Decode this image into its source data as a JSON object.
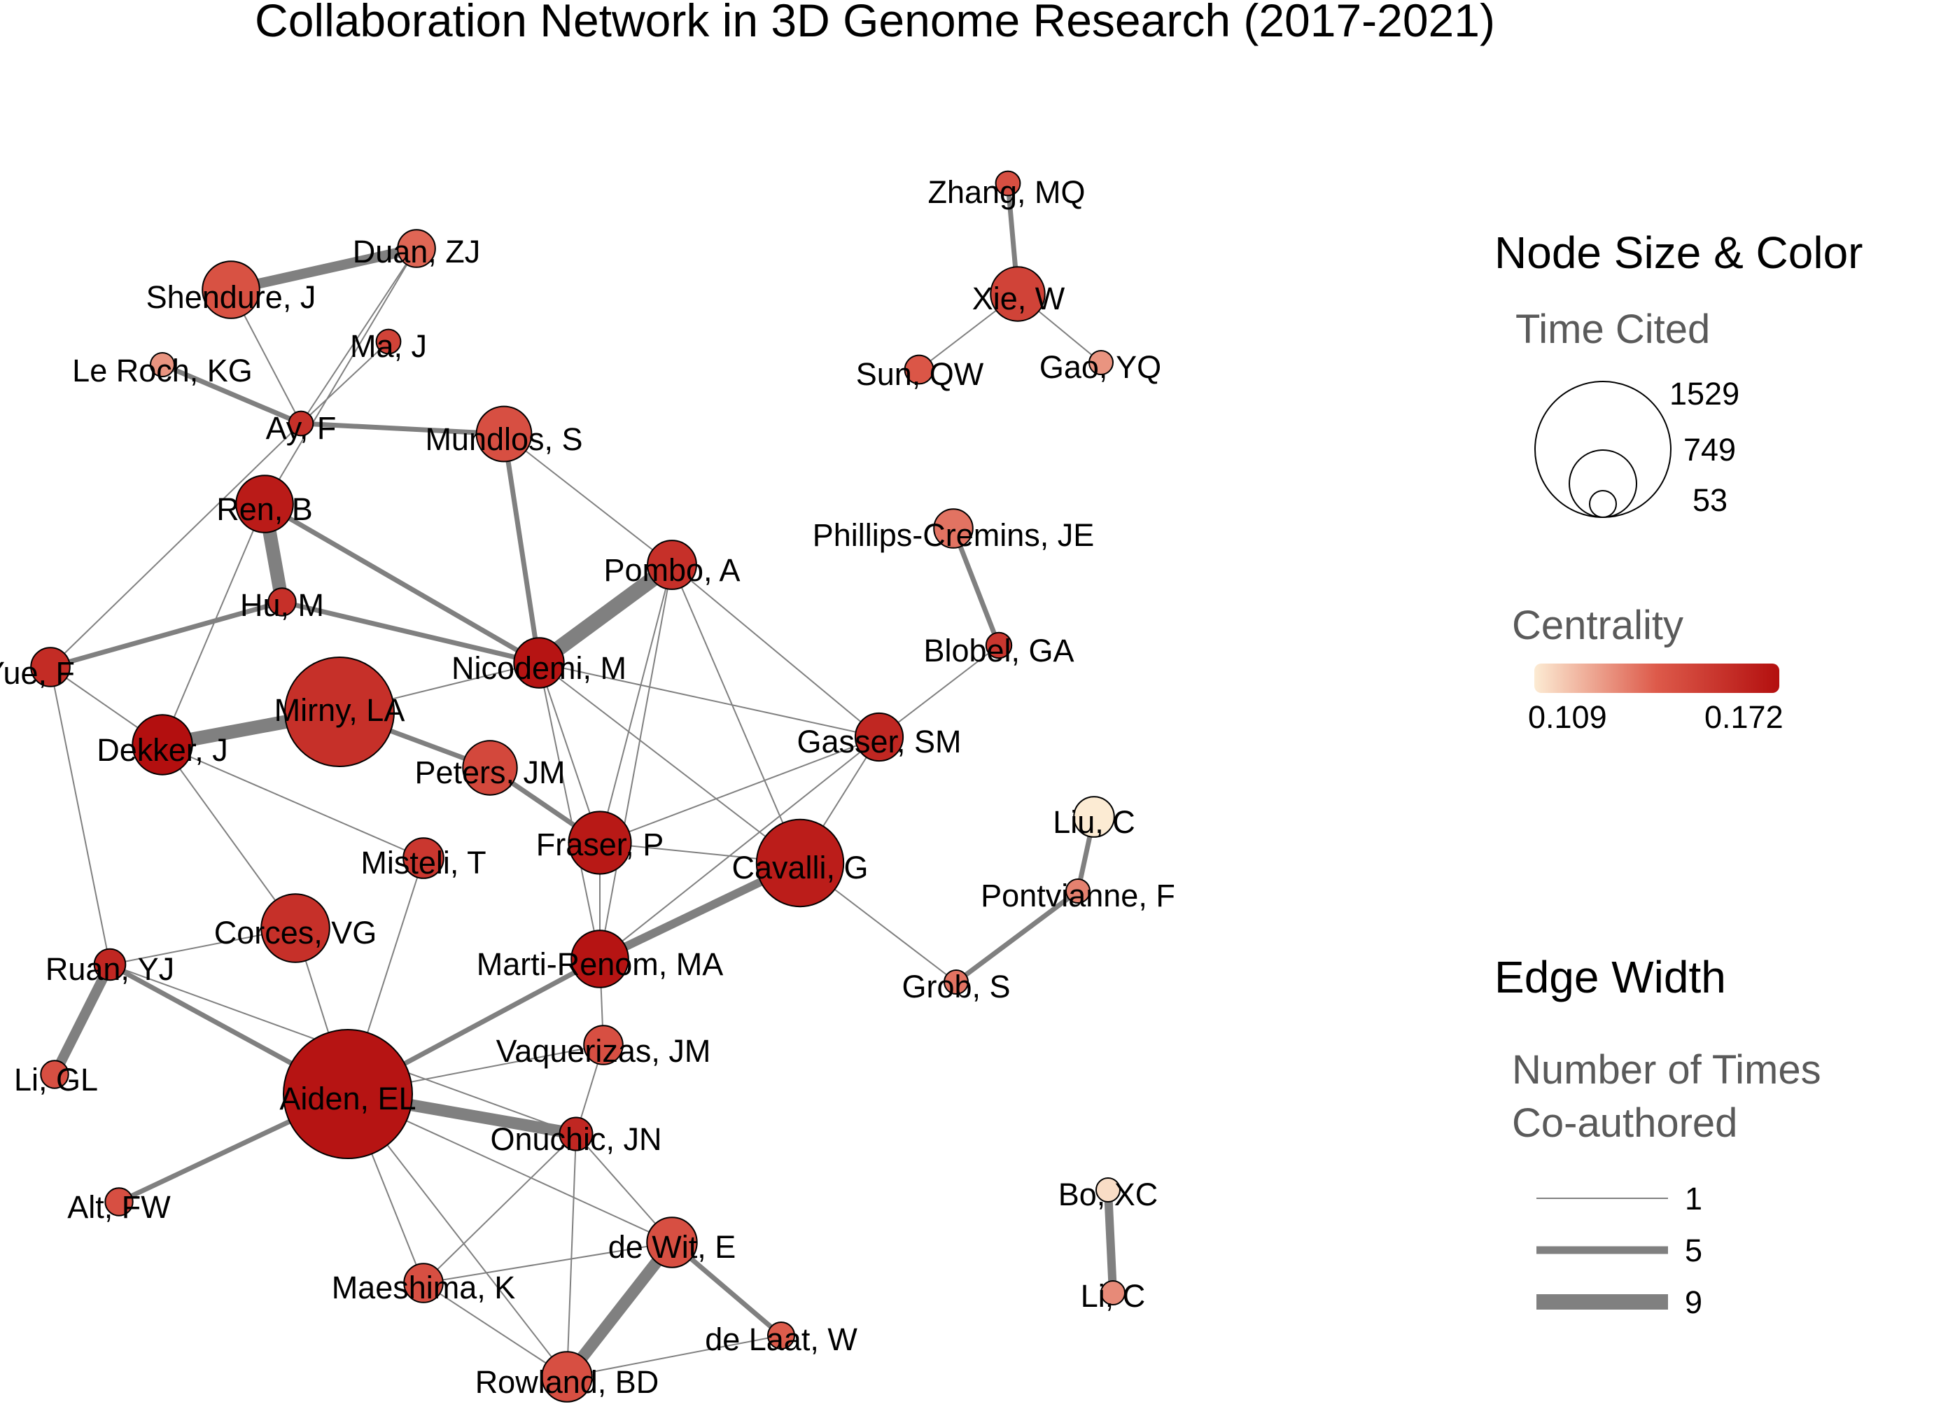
{
  "title": "Collaboration Network in 3D Genome Research (2017-2021)",
  "colors": {
    "low": "#fcebd3",
    "mid": "#dd5a4a",
    "high": "#b30f0f",
    "edge": "#808080"
  },
  "legend": {
    "node_heading": "Node Size & Color",
    "size_title": "Time Cited",
    "size_values": [
      "1529",
      "749",
      "53"
    ],
    "centrality_title": "Centrality",
    "centrality_min": "0.109",
    "centrality_max": "0.172",
    "edge_heading": "Edge Width",
    "edge_title_line1": "Number of Times",
    "edge_title_line2": "Co-authored",
    "edge_values": [
      "1",
      "5",
      "9"
    ]
  },
  "nodes": [
    {
      "id": "Zhang, MQ",
      "centrality": 0.145,
      "cited": 55
    },
    {
      "id": "Xie, W",
      "centrality": 0.15,
      "cited": 270
    },
    {
      "id": "Sun, QW",
      "centrality": 0.142,
      "cited": 75
    },
    {
      "id": "Gao, YQ",
      "centrality": 0.128,
      "cited": 45
    },
    {
      "id": "Shendure, J",
      "centrality": 0.144,
      "cited": 300
    },
    {
      "id": "Duan, ZJ",
      "centrality": 0.138,
      "cited": 130
    },
    {
      "id": "Ma, J",
      "centrality": 0.15,
      "cited": 55
    },
    {
      "id": "Le Roch, KG",
      "centrality": 0.128,
      "cited": 40
    },
    {
      "id": "Ay, F",
      "centrality": 0.158,
      "cited": 55
    },
    {
      "id": "Mundlos, S",
      "centrality": 0.145,
      "cited": 280
    },
    {
      "id": "Ren, B",
      "centrality": 0.167,
      "cited": 300
    },
    {
      "id": "Pombo, A",
      "centrality": 0.158,
      "cited": 220
    },
    {
      "id": "Phillips-Cremins, JE",
      "centrality": 0.135,
      "cited": 140
    },
    {
      "id": "Hu, M",
      "centrality": 0.158,
      "cited": 70
    },
    {
      "id": "Yue, F",
      "centrality": 0.16,
      "cited": 140
    },
    {
      "id": "Nicodemi, M",
      "centrality": 0.17,
      "cited": 230
    },
    {
      "id": "Blobel, GA",
      "centrality": 0.155,
      "cited": 60
    },
    {
      "id": "Mirny, LA",
      "centrality": 0.158,
      "cited": 1100
    },
    {
      "id": "Dekker, J",
      "centrality": 0.172,
      "cited": 330
    },
    {
      "id": "Gasser, SM",
      "centrality": 0.162,
      "cited": 210
    },
    {
      "id": "Peters, JM",
      "centrality": 0.148,
      "cited": 270
    },
    {
      "id": "Liu, C",
      "centrality": 0.109,
      "cited": 150
    },
    {
      "id": "Fraser, P",
      "centrality": 0.168,
      "cited": 360
    },
    {
      "id": "Cavalli, G",
      "centrality": 0.166,
      "cited": 700
    },
    {
      "id": "Misteli, T",
      "centrality": 0.155,
      "cited": 150
    },
    {
      "id": "Pontvianne, F",
      "centrality": 0.132,
      "cited": 40
    },
    {
      "id": "Corces, VG",
      "centrality": 0.158,
      "cited": 430
    },
    {
      "id": "Ruan, YJ",
      "centrality": 0.162,
      "cited": 90
    },
    {
      "id": "Marti-Renom, MA",
      "centrality": 0.17,
      "cited": 300
    },
    {
      "id": "Grob, S",
      "centrality": 0.135,
      "cited": 45
    },
    {
      "id": "Vaquerizas, JM",
      "centrality": 0.145,
      "cited": 140
    },
    {
      "id": "Li, GL",
      "centrality": 0.145,
      "cited": 70
    },
    {
      "id": "Aiden, EL",
      "centrality": 0.17,
      "cited": 1529
    },
    {
      "id": "Onuchic, JN",
      "centrality": 0.162,
      "cited": 100
    },
    {
      "id": "Bo, XC",
      "centrality": 0.112,
      "cited": 50
    },
    {
      "id": "Alt, FW",
      "centrality": 0.145,
      "cited": 70
    },
    {
      "id": "de Wit, E",
      "centrality": 0.145,
      "cited": 230
    },
    {
      "id": "Maeshima, K",
      "centrality": 0.145,
      "cited": 140
    },
    {
      "id": "Li, C",
      "centrality": 0.13,
      "cited": 50
    },
    {
      "id": "de Laat, W",
      "centrality": 0.14,
      "cited": 65
    },
    {
      "id": "Rowland, BD",
      "centrality": 0.145,
      "cited": 230
    }
  ],
  "edges": [
    {
      "source": "Zhang, MQ",
      "target": "Xie, W",
      "weight": 3
    },
    {
      "source": "Xie, W",
      "target": "Sun, QW",
      "weight": 1
    },
    {
      "source": "Xie, W",
      "target": "Gao, YQ",
      "weight": 1
    },
    {
      "source": "Shendure, J",
      "target": "Duan, ZJ",
      "weight": 6
    },
    {
      "source": "Shendure, J",
      "target": "Ay, F",
      "weight": 1
    },
    {
      "source": "Duan, ZJ",
      "target": "Ay, F",
      "weight": 1
    },
    {
      "source": "Duan, ZJ",
      "target": "Ren, B",
      "weight": 1
    },
    {
      "source": "Ma, J",
      "target": "Ay, F",
      "weight": 1
    },
    {
      "source": "Le Roch, KG",
      "target": "Ay, F",
      "weight": 3
    },
    {
      "source": "Ay, F",
      "target": "Mundlos, S",
      "weight": 3
    },
    {
      "source": "Ay, F",
      "target": "Yue, F",
      "weight": 1
    },
    {
      "source": "Ren, B",
      "target": "Hu, M",
      "weight": 8
    },
    {
      "source": "Ren, B",
      "target": "Nicodemi, M",
      "weight": 3
    },
    {
      "source": "Ren, B",
      "target": "Dekker, J",
      "weight": 1
    },
    {
      "source": "Mundlos, S",
      "target": "Nicodemi, M",
      "weight": 3
    },
    {
      "source": "Mundlos, S",
      "target": "Pombo, A",
      "weight": 1
    },
    {
      "source": "Hu, M",
      "target": "Yue, F",
      "weight": 3
    },
    {
      "source": "Hu, M",
      "target": "Nicodemi, M",
      "weight": 3
    },
    {
      "source": "Pombo, A",
      "target": "Nicodemi, M",
      "weight": 9
    },
    {
      "source": "Pombo, A",
      "target": "Fraser, P",
      "weight": 1
    },
    {
      "source": "Pombo, A",
      "target": "Marti-Renom, MA",
      "weight": 1
    },
    {
      "source": "Pombo, A",
      "target": "Cavalli, G",
      "weight": 1
    },
    {
      "source": "Pombo, A",
      "target": "Gasser, SM",
      "weight": 1
    },
    {
      "source": "Phillips-Cremins, JE",
      "target": "Blobel, GA",
      "weight": 3
    },
    {
      "source": "Blobel, GA",
      "target": "Gasser, SM",
      "weight": 1
    },
    {
      "source": "Yue, F",
      "target": "Dekker, J",
      "weight": 1
    },
    {
      "source": "Yue, F",
      "target": "Ruan, YJ",
      "weight": 1
    },
    {
      "source": "Nicodemi, M",
      "target": "Mirny, LA",
      "weight": 1
    },
    {
      "source": "Nicodemi, M",
      "target": "Fraser, P",
      "weight": 1
    },
    {
      "source": "Nicodemi, M",
      "target": "Marti-Renom, MA",
      "weight": 1
    },
    {
      "source": "Nicodemi, M",
      "target": "Gasser, SM",
      "weight": 1
    },
    {
      "source": "Nicodemi, M",
      "target": "Cavalli, G",
      "weight": 1
    },
    {
      "source": "Mirny, LA",
      "target": "Dekker, J",
      "weight": 8
    },
    {
      "source": "Mirny, LA",
      "target": "Peters, JM",
      "weight": 3
    },
    {
      "source": "Dekker, J",
      "target": "Corces, VG",
      "weight": 1
    },
    {
      "source": "Dekker, J",
      "target": "Misteli, T",
      "weight": 1
    },
    {
      "source": "Peters, JM",
      "target": "Fraser, P",
      "weight": 3
    },
    {
      "source": "Fraser, P",
      "target": "Cavalli, G",
      "weight": 1
    },
    {
      "source": "Fraser, P",
      "target": "Marti-Renom, MA",
      "weight": 1
    },
    {
      "source": "Fraser, P",
      "target": "Gasser, SM",
      "weight": 1
    },
    {
      "source": "Gasser, SM",
      "target": "Cavalli, G",
      "weight": 1
    },
    {
      "source": "Gasser, SM",
      "target": "Marti-Renom, MA",
      "weight": 1
    },
    {
      "source": "Liu, C",
      "target": "Pontvianne, F",
      "weight": 3
    },
    {
      "source": "Pontvianne, F",
      "target": "Grob, S",
      "weight": 3
    },
    {
      "source": "Cavalli, G",
      "target": "Grob, S",
      "weight": 1
    },
    {
      "source": "Cavalli, G",
      "target": "Marti-Renom, MA",
      "weight": 5
    },
    {
      "source": "Misteli, T",
      "target": "Aiden, EL",
      "weight": 1
    },
    {
      "source": "Corces, VG",
      "target": "Ruan, YJ",
      "weight": 1
    },
    {
      "source": "Corces, VG",
      "target": "Aiden, EL",
      "weight": 1
    },
    {
      "source": "Ruan, YJ",
      "target": "Li, GL",
      "weight": 6
    },
    {
      "source": "Ruan, YJ",
      "target": "Aiden, EL",
      "weight": 3
    },
    {
      "source": "Ruan, YJ",
      "target": "Onuchic, JN",
      "weight": 1
    },
    {
      "source": "Marti-Renom, MA",
      "target": "Aiden, EL",
      "weight": 3
    },
    {
      "source": "Marti-Renom, MA",
      "target": "Vaquerizas, JM",
      "weight": 1
    },
    {
      "source": "Vaquerizas, JM",
      "target": "Aiden, EL",
      "weight": 1
    },
    {
      "source": "Vaquerizas, JM",
      "target": "Onuchic, JN",
      "weight": 1
    },
    {
      "source": "Aiden, EL",
      "target": "Onuchic, JN",
      "weight": 7
    },
    {
      "source": "Aiden, EL",
      "target": "Alt, FW",
      "weight": 3
    },
    {
      "source": "Aiden, EL",
      "target": "de Wit, E",
      "weight": 1
    },
    {
      "source": "Aiden, EL",
      "target": "Maeshima, K",
      "weight": 1
    },
    {
      "source": "Aiden, EL",
      "target": "Rowland, BD",
      "weight": 1
    },
    {
      "source": "Onuchic, JN",
      "target": "de Wit, E",
      "weight": 1
    },
    {
      "source": "Onuchic, JN",
      "target": "Maeshima, K",
      "weight": 1
    },
    {
      "source": "Onuchic, JN",
      "target": "Rowland, BD",
      "weight": 1
    },
    {
      "source": "Bo, XC",
      "target": "Li, C",
      "weight": 5
    },
    {
      "source": "de Wit, E",
      "target": "Maeshima, K",
      "weight": 1
    },
    {
      "source": "de Wit, E",
      "target": "Rowland, BD",
      "weight": 7
    },
    {
      "source": "de Wit, E",
      "target": "de Laat, W",
      "weight": 3
    },
    {
      "source": "Rowland, BD",
      "target": "de Laat, W",
      "weight": 1
    },
    {
      "source": "Rowland, BD",
      "target": "Maeshima, K",
      "weight": 1
    }
  ]
}
